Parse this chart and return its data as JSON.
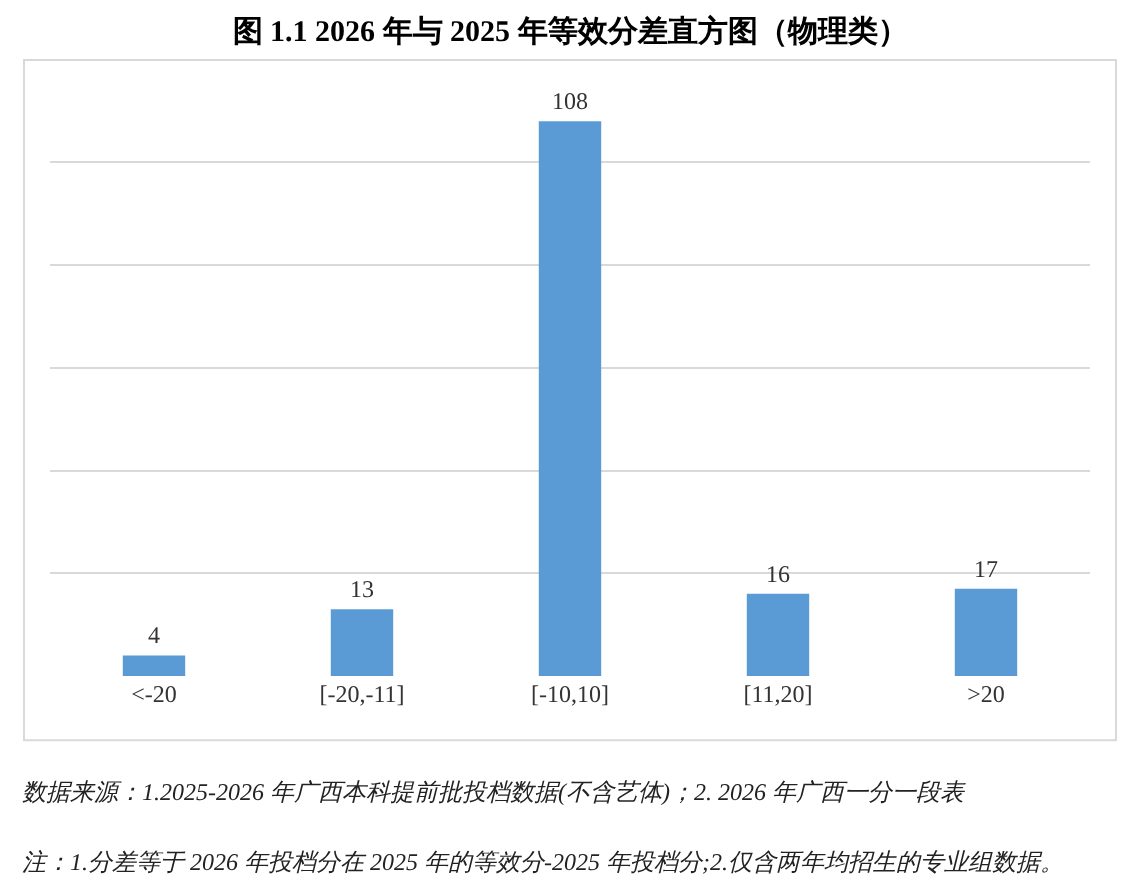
{
  "chart_data": {
    "type": "bar",
    "title": "图 1.1 2026 年与 2025 年等效分差直方图（物理类）",
    "categories": [
      "<-20",
      "[-20,-11]",
      "[-10,10]",
      "[11,20]",
      ">20"
    ],
    "values": [
      4,
      13,
      108,
      16,
      17
    ],
    "color": "#5b9bd5",
    "data_labels": true,
    "tick_labels": "x",
    "grid": "y",
    "annotations": [
      "数据来源：1.2025-2026 年广西本科提前批投档数据(不含艺体)；2. 2026 年广西一分一段表",
      "注：1.分差等于 2026 年投档分在 2025 年的等效分-2025 年投档分;2.仅含两年均招生的专业组数据。"
    ]
  }
}
